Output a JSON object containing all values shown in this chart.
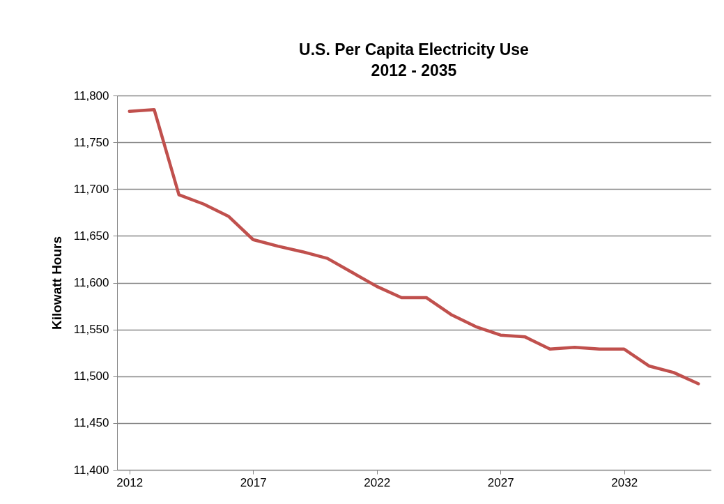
{
  "chart_data": {
    "type": "line",
    "title": "U.S. Per Capita Electricity Use\n2012 - 2035",
    "ylabel": "Kilowatt Hours",
    "x": [
      2012,
      2013,
      2014,
      2015,
      2016,
      2017,
      2018,
      2019,
      2020,
      2021,
      2022,
      2023,
      2024,
      2025,
      2026,
      2027,
      2028,
      2029,
      2030,
      2031,
      2032,
      2033,
      2034,
      2035
    ],
    "series": [
      {
        "color": "#c0504d",
        "values": [
          11783,
          11785,
          11694,
          11684,
          11671,
          11646,
          11639,
          11633,
          11626,
          11611,
          11596,
          11584,
          11584,
          11566,
          11553,
          11544,
          11542,
          11529,
          11531,
          11529,
          11529,
          11511,
          11504,
          11492
        ]
      }
    ],
    "xlim": [
      2011.5,
      2035.5
    ],
    "xticks": [
      2012,
      2017,
      2022,
      2027,
      2032
    ],
    "ylim": [
      11400,
      11800
    ],
    "yticks": [
      {
        "value": 11400,
        "label": "11,400"
      },
      {
        "value": 11450,
        "label": "11,450"
      },
      {
        "value": 11500,
        "label": "11,500"
      },
      {
        "value": 11550,
        "label": "11,550"
      },
      {
        "value": 11600,
        "label": "11,600"
      },
      {
        "value": 11650,
        "label": "11,650"
      },
      {
        "value": 11700,
        "label": "11,700"
      },
      {
        "value": 11750,
        "label": "11,750"
      },
      {
        "value": 11800,
        "label": "11,800"
      }
    ],
    "grid": "y",
    "marker": "none",
    "line_style": "solid"
  }
}
